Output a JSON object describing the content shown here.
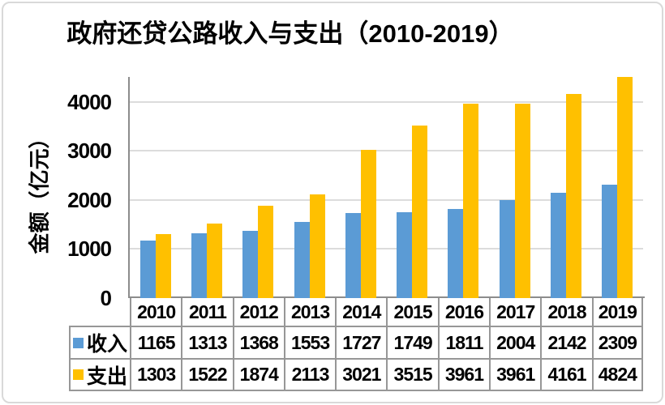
{
  "title": "政府还贷公路收入与支出（2010-2019）",
  "chart_data": {
    "type": "bar",
    "title": "政府还贷公路收入与支出（2010-2019）",
    "ylabel": "金额（亿元）",
    "xlabel": "",
    "categories": [
      "2010",
      "2011",
      "2012",
      "2013",
      "2014",
      "2015",
      "2016",
      "2017",
      "2018",
      "2019"
    ],
    "series": [
      {
        "name": "收入",
        "key": "income",
        "color": "#5B9BD5",
        "values": [
          1165,
          1313,
          1368,
          1553,
          1727,
          1749,
          1811,
          2004,
          2142,
          2309
        ]
      },
      {
        "name": "支出",
        "key": "expense",
        "color": "#FFC000",
        "values": [
          1303,
          1522,
          1874,
          2113,
          3021,
          3515,
          3961,
          3961,
          4161,
          4824
        ]
      }
    ],
    "y_ticks": [
      0,
      1000,
      2000,
      3000,
      4000
    ],
    "ylim": [
      0,
      4505
    ],
    "grid": true,
    "gridline_color": "#dcdcdc",
    "axis_color": "#8c8c8c",
    "table_border_color": "#979797",
    "legend_position": "data-table-left"
  }
}
